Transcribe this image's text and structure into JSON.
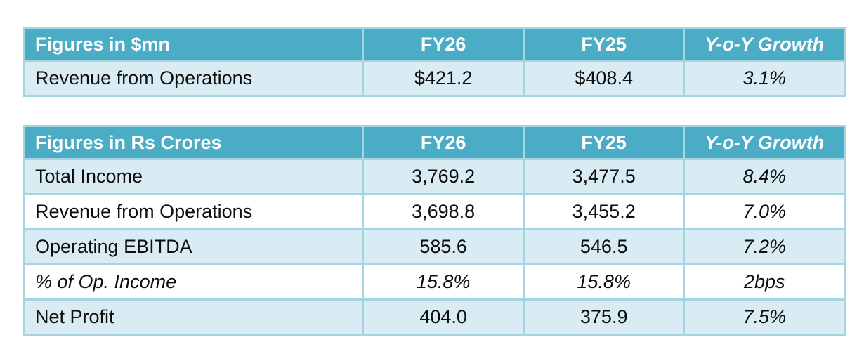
{
  "colors": {
    "header_bg": "#4BACC6",
    "band_bg": "#D9ECF3",
    "border": "#A5D5E3",
    "header_text": "#FFFFFF",
    "body_text": "#0D0D0D"
  },
  "tables": [
    {
      "header": {
        "label": "Figures in $mn",
        "fy26": "FY26",
        "fy25": "FY25",
        "growth": "Y-o-Y Growth"
      },
      "rows": [
        {
          "label": "Revenue from Operations",
          "fy26": "$421.2",
          "fy25": "$408.4",
          "growth": "3.1%"
        }
      ]
    },
    {
      "header": {
        "label": "Figures in Rs Crores",
        "fy26": "FY26",
        "fy25": "FY25",
        "growth": "Y-o-Y Growth"
      },
      "rows": [
        {
          "label": "Total Income",
          "fy26": "3,769.2",
          "fy25": "3,477.5",
          "growth": "8.4%"
        },
        {
          "label": "Revenue from Operations",
          "fy26": "3,698.8",
          "fy25": "3,455.2",
          "growth": "7.0%"
        },
        {
          "label": "Operating EBITDA",
          "fy26": "585.6",
          "fy25": "546.5",
          "growth": "7.2%"
        },
        {
          "label": "% of Op. Income",
          "fy26": "15.8%",
          "fy25": "15.8%",
          "growth": "2bps"
        },
        {
          "label": "Net Profit",
          "fy26": "404.0",
          "fy25": "375.9",
          "growth": "7.5%"
        }
      ]
    }
  ]
}
